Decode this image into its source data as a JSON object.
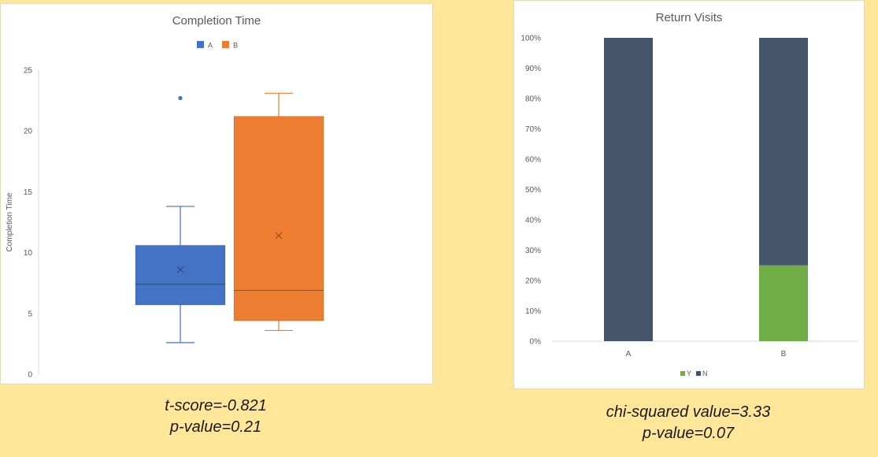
{
  "chart_data": [
    {
      "type": "box",
      "title": "Completion Time",
      "xlabel": "",
      "ylabel": "Completion Time",
      "ylim": [
        0,
        25
      ],
      "yticks": [
        0,
        5,
        10,
        15,
        20,
        25
      ],
      "grid": false,
      "legend_position": "top",
      "series": [
        {
          "name": "A",
          "color": "#4472c4",
          "min": 2.6,
          "q1": 5.7,
          "median": 7.4,
          "q3": 10.6,
          "max": 13.8,
          "mean": 8.6,
          "outliers": [
            22.7
          ]
        },
        {
          "name": "B",
          "color": "#ed7d31",
          "min": 3.6,
          "q1": 4.4,
          "median": 6.9,
          "q3": 21.2,
          "max": 23.1,
          "mean": 11.4,
          "outliers": []
        }
      ]
    },
    {
      "type": "bar",
      "stacked": "percent",
      "title": "Return Visits",
      "xlabel": "",
      "ylabel": "",
      "categories": [
        "A",
        "B"
      ],
      "ylim": [
        0,
        100
      ],
      "yticks": [
        "0%",
        "10%",
        "20%",
        "30%",
        "40%",
        "50%",
        "60%",
        "70%",
        "80%",
        "90%",
        "100%"
      ],
      "grid": false,
      "legend_position": "bottom",
      "series": [
        {
          "name": "Y",
          "color": "#70ad47",
          "values": [
            0,
            25
          ]
        },
        {
          "name": "N",
          "color": "#44546a",
          "values": [
            100,
            75
          ]
        }
      ]
    }
  ],
  "stats": {
    "left": {
      "line1": "t-score=-0.821",
      "line2": "p-value=0.21"
    },
    "right": {
      "line1": "chi-squared value=3.33",
      "line2": "p-value=0.07"
    }
  }
}
